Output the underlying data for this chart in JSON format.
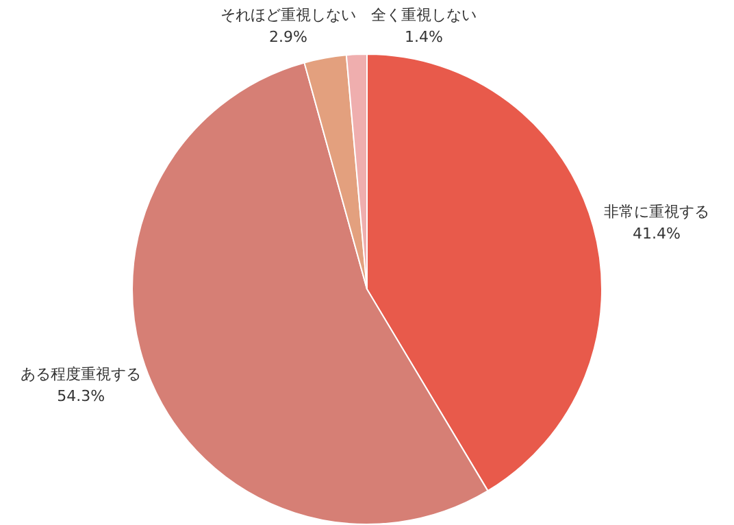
{
  "chart_data": {
    "type": "pie",
    "categories": [
      "非常に重視する",
      "ある程度重視する",
      "それほど重視しない",
      "全く重視しない"
    ],
    "values": [
      41.4,
      54.3,
      2.9,
      1.4
    ],
    "colors": [
      "#e85a4b",
      "#d67f75",
      "#e3a07e",
      "#efaeae"
    ],
    "value_labels": [
      "41.4%",
      "54.3%",
      "2.9%",
      "1.4%"
    ],
    "legend": false
  }
}
